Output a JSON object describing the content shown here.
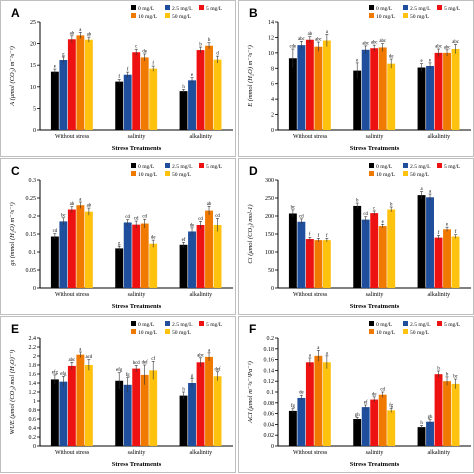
{
  "colors": [
    "#000000",
    "#1f4e9c",
    "#ee1111",
    "#f07a00",
    "#ffc20e"
  ],
  "legend": [
    "0 mg/L",
    "2.5 mg/L",
    "5 mg/L",
    "10 mg/L",
    "50 mg/L"
  ],
  "chart_data": [
    {
      "panel": "A",
      "type": "bar",
      "categories": [
        "Without stress",
        "salinity",
        "alkalinity"
      ],
      "xlabel": "Stress Treatments",
      "ylabel": "A (μmol (CO₂) m⁻²s⁻¹)",
      "ylim": [
        0,
        25
      ],
      "yticks": [
        0,
        5,
        10,
        15,
        20,
        25
      ],
      "values": [
        [
          13.5,
          16.2,
          21.0,
          21.9,
          20.9
        ],
        [
          11.2,
          12.8,
          18.0,
          16.8,
          14.2
        ],
        [
          9.0,
          11.5,
          18.5,
          19.5,
          16.3
        ]
      ],
      "errors": [
        [
          0.6,
          0.7,
          0.8,
          0.7,
          0.6
        ],
        [
          0.5,
          0.6,
          0.7,
          0.8,
          0.6
        ],
        [
          0.4,
          0.6,
          0.7,
          0.7,
          0.8
        ]
      ],
      "letters": [
        [
          "e",
          "g",
          "ab",
          "a",
          "ab"
        ],
        [
          "f",
          "f",
          "c",
          "de",
          "f"
        ],
        [
          "h",
          "e",
          "b",
          "b",
          "d"
        ]
      ]
    },
    {
      "panel": "B",
      "type": "bar",
      "categories": [
        "Without stress",
        "salinity",
        "alkalinity"
      ],
      "xlabel": "Stress Treatments",
      "ylabel": "E (mmol (H₂O) m⁻²s⁻¹)",
      "ylim": [
        0,
        14
      ],
      "yticks": [
        0,
        2,
        4,
        6,
        8,
        10,
        12,
        14
      ],
      "values": [
        [
          9.3,
          11.0,
          11.7,
          10.8,
          11.6
        ],
        [
          7.7,
          10.4,
          10.6,
          10.7,
          8.6
        ],
        [
          8.1,
          8.3,
          10.0,
          10.0,
          10.5
        ]
      ],
      "errors": [
        [
          1.2,
          0.5,
          0.4,
          0.6,
          0.8
        ],
        [
          1.0,
          0.5,
          0.4,
          0.5,
          0.6
        ],
        [
          0.5,
          0.4,
          0.5,
          0.4,
          0.6
        ]
      ],
      "letters": [
        [
          "cde",
          "abc",
          "ab",
          "abc",
          "a"
        ],
        [
          "e",
          "abc",
          "abc",
          "abc",
          "de"
        ],
        [
          "e",
          "e",
          "abc",
          "abc",
          "abc"
        ]
      ]
    },
    {
      "panel": "C",
      "type": "bar",
      "categories": [
        "Without stress",
        "salinity",
        "alkalinity"
      ],
      "xlabel": "Stress Treatments",
      "ylabel": "gs (mmol (H₂O) m⁻²s⁻¹)",
      "ylim": [
        0,
        0.3
      ],
      "yticks": [
        0,
        0.05,
        0.1,
        0.15,
        0.2,
        0.25,
        0.3
      ],
      "values": [
        [
          0.143,
          0.185,
          0.218,
          0.23,
          0.212
        ],
        [
          0.11,
          0.182,
          0.176,
          0.179,
          0.123
        ],
        [
          0.12,
          0.157,
          0.175,
          0.215,
          0.175
        ]
      ],
      "errors": [
        [
          0.008,
          0.01,
          0.008,
          0.009,
          0.01
        ],
        [
          0.006,
          0.008,
          0.01,
          0.012,
          0.01
        ],
        [
          0.007,
          0.01,
          0.01,
          0.012,
          0.018
        ]
      ],
      "letters": [
        [
          "cd",
          "bc",
          "ab",
          "a",
          "ab"
        ],
        [
          "g",
          "cd",
          "cd",
          "cd",
          "de"
        ],
        [
          "ef",
          "de",
          "cd",
          "ab",
          "cd"
        ]
      ]
    },
    {
      "panel": "D",
      "type": "bar",
      "categories": [
        "Without stress",
        "salinity",
        "alkalinity"
      ],
      "xlabel": "Stress Treatments",
      "ylabel": "Ci (μmol (CO₂) mol-1)",
      "ylim": [
        0,
        300
      ],
      "yticks": [
        0,
        50,
        100,
        150,
        200,
        250,
        300
      ],
      "values": [
        [
          207,
          184,
          136,
          133,
          133
        ],
        [
          228,
          190,
          208,
          172,
          218
        ],
        [
          258,
          252,
          140,
          163,
          143
        ]
      ],
      "errors": [
        [
          10,
          8,
          5,
          5,
          5
        ],
        [
          8,
          8,
          6,
          5,
          7
        ],
        [
          10,
          9,
          6,
          6,
          5
        ]
      ],
      "letters": [
        [
          "bc",
          "cd",
          "f",
          "f",
          "f"
        ],
        [
          "b",
          "cd",
          "c",
          "e",
          "b"
        ],
        [
          "a",
          "a",
          "f",
          "e",
          "f"
        ]
      ]
    },
    {
      "panel": "E",
      "type": "bar",
      "categories": [
        "Without stress",
        "salinity",
        "alkalinity"
      ],
      "xlabel": "Stress Treatments",
      "ylabel": "WUE (μmol (CO₂) mol (H₂O)⁻¹)",
      "ylim": [
        0,
        2.4
      ],
      "yticks": [
        0,
        0.2,
        0.4,
        0.6,
        0.8,
        1,
        1.2,
        1.4,
        1.6,
        1.8,
        2,
        2.2,
        2.4
      ],
      "values": [
        [
          1.48,
          1.43,
          1.78,
          2.03,
          1.8
        ],
        [
          1.45,
          1.36,
          1.72,
          1.58,
          1.68
        ],
        [
          1.12,
          1.4,
          1.86,
          1.98,
          1.55
        ]
      ],
      "errors": [
        [
          0.1,
          0.12,
          0.08,
          0.06,
          0.12
        ],
        [
          0.18,
          0.16,
          0.07,
          0.22,
          0.2
        ],
        [
          0.08,
          0.1,
          0.1,
          0.09,
          0.1
        ]
      ],
      "letters": [
        [
          "efg",
          "efg",
          "abc",
          "a",
          "acd"
        ],
        [
          "efg",
          "fg",
          "bcd",
          "def",
          "cf"
        ],
        [
          "h",
          "g",
          "abc",
          "a",
          "def"
        ]
      ]
    },
    {
      "panel": "F",
      "type": "bar",
      "categories": [
        "Without stress",
        "salinity",
        "alkalinity"
      ],
      "xlabel": "Stress Treatments",
      "ylabel": "ACI (μmol m⁻²s⁻¹Pa⁻¹)",
      "ylim": [
        0,
        0.2
      ],
      "yticks": [
        0,
        0.02,
        0.04,
        0.06,
        0.08,
        0.1,
        0.12,
        0.14,
        0.16,
        0.18,
        0.2
      ],
      "values": [
        [
          0.065,
          0.089,
          0.155,
          0.167,
          0.155
        ],
        [
          0.05,
          0.072,
          0.086,
          0.095,
          0.066
        ],
        [
          0.035,
          0.045,
          0.133,
          0.12,
          0.115
        ]
      ],
      "errors": [
        [
          0.004,
          0.005,
          0.008,
          0.01,
          0.012
        ],
        [
          0.003,
          0.004,
          0.005,
          0.005,
          0.004
        ],
        [
          0.003,
          0.004,
          0.006,
          0.008,
          0.009
        ]
      ],
      "letters": [
        [
          "fg",
          "de",
          "a",
          "a",
          "a"
        ],
        [
          "gh",
          "ef",
          "de",
          "cd",
          "fg"
        ],
        [
          "h",
          "gh",
          "b",
          "b",
          "bc"
        ]
      ]
    }
  ]
}
